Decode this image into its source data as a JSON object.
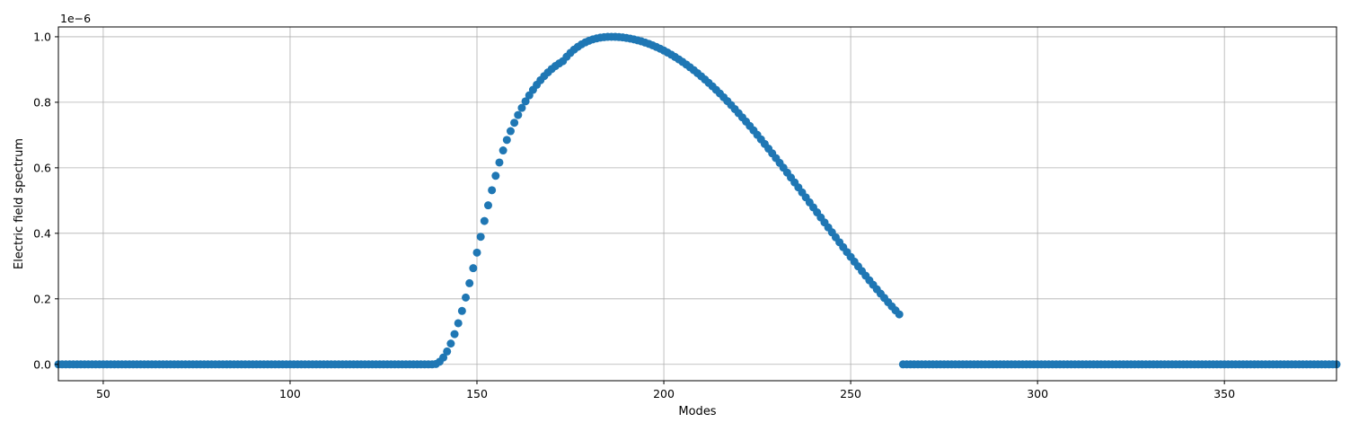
{
  "chart_data": {
    "type": "scatter",
    "title": "",
    "xlabel": "Modes",
    "ylabel": "Electric field spectrum",
    "y_offset_label": "1e−6",
    "xlim": [
      38,
      380
    ],
    "ylim": [
      -5e-08,
      1.03e-06
    ],
    "x_ticks": [
      50,
      100,
      150,
      200,
      250,
      300,
      350
    ],
    "x_tick_labels": [
      "50",
      "100",
      "150",
      "200",
      "250",
      "300",
      "350"
    ],
    "y_ticks": [
      0,
      2e-07,
      4e-07,
      6e-07,
      8e-07,
      1e-06
    ],
    "y_tick_labels": [
      "0.0",
      "0.2",
      "0.4",
      "0.6",
      "0.8",
      "1.0"
    ],
    "grid": true,
    "marker_color": "#1f77b4",
    "series": [
      {
        "x_start": 38,
        "x_end": 380,
        "x_step": 1,
        "nonzero_x": [
          138,
          139,
          140,
          141,
          142,
          143,
          144,
          145,
          146,
          147,
          148,
          149,
          150,
          151,
          152,
          153,
          154,
          155,
          156,
          157,
          158,
          159,
          160,
          161,
          162,
          163,
          164,
          165,
          166,
          167,
          168,
          169,
          170,
          171,
          172,
          173,
          174,
          175,
          176,
          177,
          178,
          179,
          180,
          181,
          182,
          183,
          184,
          185,
          186,
          187,
          188,
          189,
          190,
          191,
          192,
          193,
          194,
          195,
          196,
          197,
          198,
          199,
          200,
          201,
          202,
          203,
          204,
          205,
          206,
          207,
          208,
          209,
          210,
          211,
          212,
          213,
          214,
          215,
          216,
          217,
          218,
          219,
          220,
          221,
          222,
          223,
          224,
          225,
          226,
          227,
          228,
          229,
          230,
          231,
          232,
          233,
          234,
          235,
          236,
          237,
          238,
          239,
          240,
          241,
          242,
          243,
          244,
          245,
          246,
          247,
          248,
          249,
          250,
          251,
          252,
          253,
          254,
          255,
          256,
          257,
          258,
          259,
          260,
          261,
          262,
          263
        ],
        "nonzero_y": [
          0.0,
          9e-10,
          7.9e-09,
          2.08e-08,
          3.94e-08,
          6.34e-08,
          9.23e-08,
          1.256e-07,
          1.63e-07,
          2.039e-07,
          2.476e-07,
          2.935e-07,
          3.41e-07,
          3.893e-07,
          4.377e-07,
          4.854e-07,
          5.316e-07,
          5.755e-07,
          6.162e-07,
          6.53e-07,
          6.851e-07,
          7.12e-07,
          7.375e-07,
          7.611e-07,
          7.829e-07,
          8.029e-07,
          8.213e-07,
          8.381e-07,
          8.535e-07,
          8.674e-07,
          8.8e-07,
          8.914e-07,
          9.016e-07,
          9.106e-07,
          9.186e-07,
          9.256e-07,
          9.391e-07,
          9.508e-07,
          9.609e-07,
          9.695e-07,
          9.769e-07,
          9.83e-07,
          9.88e-07,
          9.92e-07,
          9.95e-07,
          9.973e-07,
          9.988e-07,
          9.997e-07,
          1e-06,
          9.998e-07,
          9.991e-07,
          9.98e-07,
          9.964e-07,
          9.944e-07,
          9.92e-07,
          9.892e-07,
          9.86e-07,
          9.823e-07,
          9.783e-07,
          9.738e-07,
          9.689e-07,
          9.636e-07,
          9.579e-07,
          9.518e-07,
          9.453e-07,
          9.384e-07,
          9.311e-07,
          9.234e-07,
          9.153e-07,
          9.069e-07,
          8.981e-07,
          8.889e-07,
          8.794e-07,
          8.695e-07,
          8.593e-07,
          8.488e-07,
          8.379e-07,
          8.268e-07,
          8.153e-07,
          8.036e-07,
          7.916e-07,
          7.793e-07,
          7.668e-07,
          7.54e-07,
          7.41e-07,
          7.277e-07,
          7.143e-07,
          7.006e-07,
          6.867e-07,
          6.727e-07,
          6.585e-07,
          6.441e-07,
          6.296e-07,
          6.15e-07,
          6.002e-07,
          5.853e-07,
          5.703e-07,
          5.553e-07,
          5.401e-07,
          5.249e-07,
          5.097e-07,
          4.944e-07,
          4.791e-07,
          4.638e-07,
          4.485e-07,
          4.332e-07,
          4.18e-07,
          4.028e-07,
          3.877e-07,
          3.726e-07,
          3.577e-07,
          3.428e-07,
          3.281e-07,
          3.135e-07,
          2.99e-07,
          2.847e-07,
          2.706e-07,
          2.566e-07,
          2.428e-07,
          2.292e-07,
          2.158e-07,
          2.027e-07,
          1.898e-07,
          1.771e-07,
          1.647e-07,
          1.526e-07
        ]
      }
    ]
  }
}
